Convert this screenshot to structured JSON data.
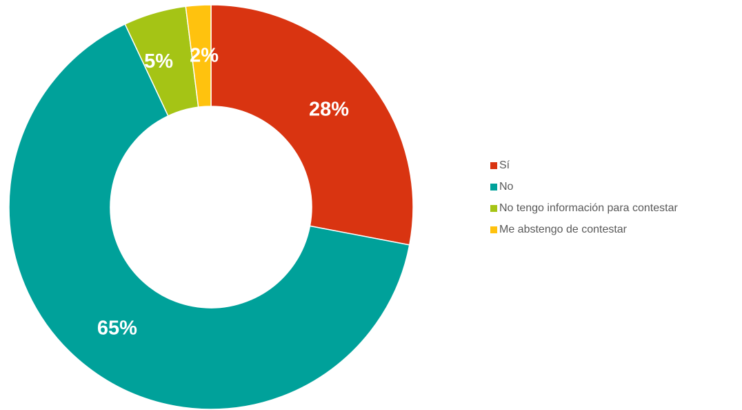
{
  "chart_data": {
    "type": "pie",
    "variant": "donut",
    "title": "",
    "categories": [
      "Sí",
      "No",
      "No tengo información para contestar",
      "Me abstengo de contestar"
    ],
    "values": [
      28,
      65,
      5,
      2
    ],
    "value_labels": [
      "28%",
      "65%",
      "5%",
      "2%"
    ],
    "colors": [
      "#D93411",
      "#00A19A",
      "#A5C415",
      "#FFC20E"
    ],
    "start_angle_deg": 0,
    "direction": "clockwise",
    "legend": {
      "position": "right",
      "entries": [
        "Sí",
        "No",
        "No tengo información para contestar",
        "Me abstengo de contestar"
      ]
    }
  }
}
